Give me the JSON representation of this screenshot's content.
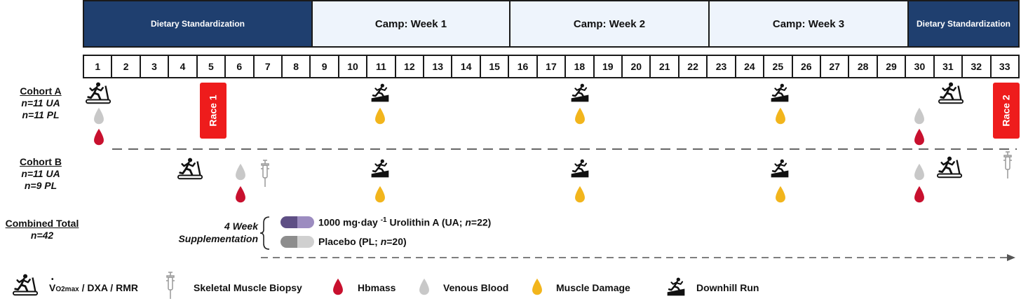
{
  "phases": [
    {
      "label": "Dietary Standardization",
      "style": "dark"
    },
    {
      "label": "Camp: Week 1",
      "style": "light"
    },
    {
      "label": "Camp: Week 2",
      "style": "light"
    },
    {
      "label": "Camp: Week 3",
      "style": "light"
    },
    {
      "label": "Dietary Standardization",
      "style": "dark"
    }
  ],
  "days": [
    "1",
    "2",
    "3",
    "4",
    "5",
    "6",
    "7",
    "8",
    "9",
    "10",
    "11",
    "12",
    "13",
    "14",
    "15",
    "16",
    "17",
    "18",
    "19",
    "20",
    "21",
    "22",
    "23",
    "24",
    "25",
    "26",
    "27",
    "28",
    "29",
    "30",
    "31",
    "32",
    "33"
  ],
  "cohort_a": {
    "name": "Cohort A",
    "n1": "n=11 UA",
    "n2": "n=11 PL",
    "race1": "Race 1",
    "race2": "Race 2"
  },
  "cohort_b": {
    "name": "Cohort B",
    "n1": "n=11 UA",
    "n2": "n=9 PL"
  },
  "combined": {
    "name": "Combined Total",
    "n": "n=42"
  },
  "supplementation": {
    "line1": "4 Week",
    "line2": "Supplementation",
    "ua_prefix": "1000 mg·day ",
    "ua_sup": "-1",
    "ua_main": " Urolithin A (UA; ",
    "ua_n": "n",
    "ua_end": "=22)",
    "pl_main": "Placebo (PL; ",
    "pl_n": "n",
    "pl_end": "=20)"
  },
  "legend": {
    "vo2_v": "V",
    "vo2_sub": "O2max",
    "vo2_rest": " / DXA / RMR",
    "biopsy": "Skeletal Muscle Biopsy",
    "hbmass": "Hbmass",
    "venous": "Venous Blood",
    "damage": "Muscle Damage",
    "downhill": "Downhill Run"
  },
  "colors": {
    "phase_dark": "#1f3f6f",
    "phase_light": "#eef4fc",
    "race": "#ee1c1c",
    "hbmass": "#c8102e",
    "venous": "#c8c8c8",
    "damage": "#f2b51c",
    "ua_pill": "#6b5a8e",
    "pl_pill": "#a8a8a8"
  }
}
